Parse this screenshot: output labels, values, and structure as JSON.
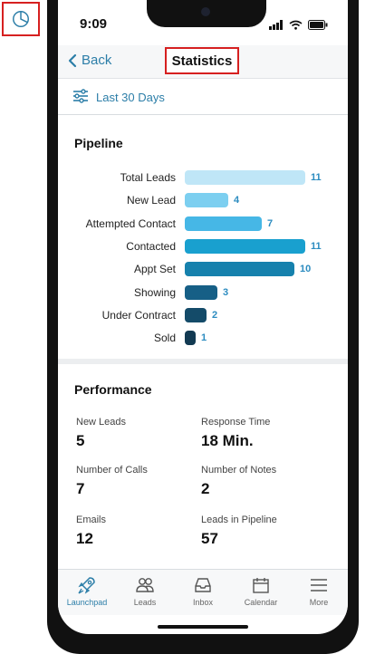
{
  "status": {
    "time": "9:09"
  },
  "nav": {
    "back_label": "Back",
    "title": "Statistics"
  },
  "filter": {
    "label": "Last 30 Days"
  },
  "pipeline": {
    "title": "Pipeline",
    "items": [
      {
        "label": "Total Leads",
        "value": 11,
        "color": "#bfe6f7"
      },
      {
        "label": "New Lead",
        "value": 4,
        "color": "#7ccff0"
      },
      {
        "label": "Attempted Contact",
        "value": 7,
        "color": "#46b7e6"
      },
      {
        "label": "Contacted",
        "value": 11,
        "color": "#19a0cf"
      },
      {
        "label": "Appt Set",
        "value": 10,
        "color": "#1681ad"
      },
      {
        "label": "Showing",
        "value": 3,
        "color": "#165f86"
      },
      {
        "label": "Under Contract",
        "value": 2,
        "color": "#144b69"
      },
      {
        "label": "Sold",
        "value": 1,
        "color": "#123a52"
      }
    ],
    "max": 11
  },
  "performance": {
    "title": "Performance",
    "items": [
      {
        "label": "New Leads",
        "value": "5"
      },
      {
        "label": "Response Time",
        "value": "18 Min."
      },
      {
        "label": "Number of Calls",
        "value": "7"
      },
      {
        "label": "Number of Notes",
        "value": "2"
      },
      {
        "label": "Emails",
        "value": "12"
      },
      {
        "label": "Leads in Pipeline",
        "value": "57"
      }
    ]
  },
  "tabs": [
    {
      "label": "Launchpad",
      "icon": "rocket-icon",
      "active": true
    },
    {
      "label": "Leads",
      "icon": "people-icon",
      "active": false
    },
    {
      "label": "Inbox",
      "icon": "inbox-icon",
      "active": false
    },
    {
      "label": "Calendar",
      "icon": "calendar-icon",
      "active": false
    },
    {
      "label": "More",
      "icon": "menu-icon",
      "active": false
    }
  ],
  "colors": {
    "accent": "#2c7ea8",
    "highlight_box": "#d62020"
  }
}
